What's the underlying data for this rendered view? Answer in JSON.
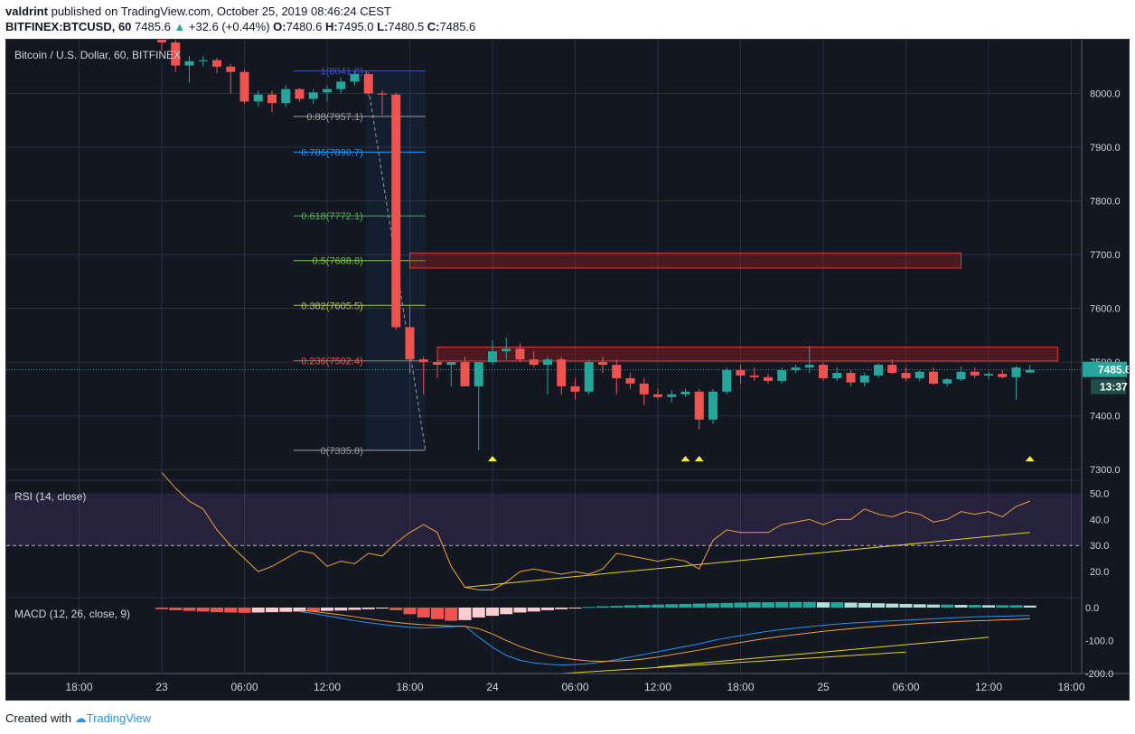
{
  "header": {
    "author": "valdrint",
    "published_text": "published on TradingView.com, October 25, 2019 08:46:24 CEST",
    "symbol": "BITFINEX:BTCUSD, 60",
    "last": "7485.6",
    "change": "+32.6 (+0.44%)",
    "open_label": "O:",
    "open": "7480.6",
    "high_label": "H:",
    "high": "7495.0",
    "low_label": "L:",
    "low": "7480.5",
    "close_label": "C:",
    "close": "7485.6"
  },
  "colors": {
    "background": "#131722",
    "grid": "#2a2e39",
    "text": "#b2b5be",
    "up": "#26a69a",
    "down": "#ef5350",
    "rsi_line": "#f0a030",
    "macd_line": "#2196f3",
    "signal_line": "#f0a030",
    "trend_line": "#e6d21e",
    "arrow": "#ffeb3b",
    "resistance": "#b71c1c"
  },
  "footer": {
    "created_with": "Created with",
    "brand": "TradingView"
  },
  "chart_data": {
    "type": "candlestick",
    "title": "Bitcoin / U.S. Dollar, 60, BITFINEX",
    "price_range": [
      7280,
      8100
    ],
    "price_ticks": [
      "8000.0",
      "7900.0",
      "7800.0",
      "7700.0",
      "7600.0",
      "7500.0",
      "7400.0",
      "7300.0"
    ],
    "last_price_label": "7485.6",
    "countdown_label": "13:37",
    "time_labels": [
      "18:00",
      "23",
      "06:00",
      "12:00",
      "18:00",
      "24",
      "06:00",
      "12:00",
      "18:00",
      "25",
      "06:00",
      "12:00",
      "18:00"
    ],
    "time_label_index": [
      -6,
      0,
      6,
      12,
      18,
      24,
      30,
      36,
      42,
      48,
      54,
      60,
      66
    ],
    "candle_index_start": 0,
    "candles": [
      [
        8120,
        8130,
        8080,
        8095
      ],
      [
        8095,
        8105,
        8040,
        8052
      ],
      [
        8052,
        8070,
        8020,
        8060
      ],
      [
        8060,
        8070,
        8050,
        8062
      ],
      [
        8062,
        8066,
        8038,
        8050
      ],
      [
        8050,
        8055,
        8000,
        8040
      ],
      [
        8040,
        8045,
        7980,
        7985
      ],
      [
        7985,
        8005,
        7975,
        7998
      ],
      [
        7998,
        8005,
        7965,
        7982
      ],
      [
        7982,
        8015,
        7975,
        8008
      ],
      [
        8008,
        8010,
        7985,
        7990
      ],
      [
        7990,
        8008,
        7980,
        8002
      ],
      [
        8002,
        8015,
        7985,
        8008
      ],
      [
        8008,
        8030,
        8000,
        8022
      ],
      [
        8022,
        8042,
        8015,
        8036
      ],
      [
        8036,
        8040,
        7995,
        8000
      ],
      [
        8000,
        8005,
        7960,
        7998
      ],
      [
        7998,
        8002,
        7560,
        7565
      ],
      [
        7565,
        7605,
        7480,
        7505
      ],
      [
        7505,
        7510,
        7440,
        7500
      ],
      [
        7500,
        7505,
        7470,
        7495
      ],
      [
        7495,
        7500,
        7455,
        7500
      ],
      [
        7500,
        7510,
        7455,
        7455
      ],
      [
        7455,
        7500,
        7336,
        7500
      ],
      [
        7500,
        7540,
        7495,
        7520
      ],
      [
        7520,
        7545,
        7505,
        7525
      ],
      [
        7525,
        7535,
        7500,
        7505
      ],
      [
        7505,
        7520,
        7490,
        7495
      ],
      [
        7495,
        7510,
        7440,
        7505
      ],
      [
        7505,
        7510,
        7440,
        7455
      ],
      [
        7455,
        7470,
        7430,
        7445
      ],
      [
        7445,
        7505,
        7440,
        7500
      ],
      [
        7500,
        7510,
        7480,
        7495
      ],
      [
        7495,
        7505,
        7440,
        7470
      ],
      [
        7470,
        7480,
        7450,
        7460
      ],
      [
        7460,
        7470,
        7420,
        7440
      ],
      [
        7440,
        7450,
        7430,
        7435
      ],
      [
        7435,
        7448,
        7425,
        7440
      ],
      [
        7440,
        7450,
        7435,
        7445
      ],
      [
        7445,
        7450,
        7375,
        7393
      ],
      [
        7393,
        7450,
        7385,
        7445
      ],
      [
        7445,
        7490,
        7440,
        7485
      ],
      [
        7485,
        7495,
        7460,
        7475
      ],
      [
        7475,
        7490,
        7465,
        7472
      ],
      [
        7472,
        7478,
        7460,
        7465
      ],
      [
        7465,
        7490,
        7460,
        7485
      ],
      [
        7485,
        7495,
        7480,
        7490
      ],
      [
        7490,
        7530,
        7480,
        7495
      ],
      [
        7495,
        7500,
        7465,
        7470
      ],
      [
        7470,
        7490,
        7465,
        7480
      ],
      [
        7480,
        7485,
        7455,
        7462
      ],
      [
        7462,
        7480,
        7455,
        7475
      ],
      [
        7475,
        7498,
        7470,
        7495
      ],
      [
        7495,
        7505,
        7478,
        7480
      ],
      [
        7480,
        7490,
        7465,
        7470
      ],
      [
        7470,
        7485,
        7465,
        7482
      ],
      [
        7482,
        7490,
        7458,
        7460
      ],
      [
        7460,
        7470,
        7455,
        7468
      ],
      [
        7468,
        7492,
        7465,
        7482
      ],
      [
        7482,
        7490,
        7470,
        7475
      ],
      [
        7475,
        7482,
        7468,
        7478
      ],
      [
        7478,
        7485,
        7470,
        7472
      ],
      [
        7472,
        7493,
        7430,
        7490
      ],
      [
        7480.6,
        7495,
        7480.5,
        7485.6
      ]
    ],
    "fibonacci": {
      "levels": [
        {
          "ratio": "1",
          "price": 8041.8,
          "label": "1(8041.8)",
          "color": "#3f51b5"
        },
        {
          "ratio": "0.88",
          "price": 7957.1,
          "label": "0.88(7957.1)",
          "color": "#9e9e9e"
        },
        {
          "ratio": "0.786",
          "price": 7890.7,
          "label": "0.786(7890.7)",
          "color": "#2196f3"
        },
        {
          "ratio": "0.618",
          "price": 7772.1,
          "label": "0.618(7772.1)",
          "color": "#4caf50"
        },
        {
          "ratio": "0.5",
          "price": 7688.8,
          "label": "0.5(7688.8)",
          "color": "#76c043"
        },
        {
          "ratio": "0.382",
          "price": 7605.5,
          "label": "0.382(7605.5)",
          "color": "#b5c93a"
        },
        {
          "ratio": "0.236",
          "price": 7502.4,
          "label": "0.236(7502.4)",
          "color": "#ef5350"
        },
        {
          "ratio": "0",
          "price": 7335.8,
          "label": "0(7335.8)",
          "color": "#9e9e9e"
        }
      ],
      "start_index": 15,
      "end_index": 19
    },
    "resistance_zones": [
      {
        "price_low": 7675,
        "price_high": 7703,
        "from_index": 18,
        "to_index": 58
      },
      {
        "price_low": 7502,
        "price_high": 7528,
        "from_index": 20,
        "to_index": 65
      }
    ],
    "arrows_at_index": [
      24,
      38,
      39,
      63
    ],
    "rsi": {
      "label": "RSI (14, close)",
      "range": [
        10,
        55
      ],
      "ticks": [
        "50.0",
        "40.0",
        "30.0",
        "20.0"
      ],
      "band": [
        30,
        50
      ],
      "values": [
        58,
        52,
        47,
        44,
        36,
        30,
        25,
        20,
        22,
        25,
        28,
        27,
        22,
        24,
        23,
        27,
        26,
        31,
        35,
        38,
        35,
        22,
        14,
        13,
        13,
        16,
        20,
        21,
        20,
        19,
        20,
        19,
        21,
        27,
        26,
        25,
        24,
        25,
        24,
        21,
        32,
        36,
        35,
        35,
        35,
        38,
        39,
        40,
        38,
        40,
        40,
        44,
        42,
        41,
        43,
        42,
        39,
        40,
        43,
        42,
        43,
        41,
        45,
        47
      ],
      "trend_line": {
        "from_index": 22,
        "from_value": 14,
        "to_index": 63,
        "to_value": 35
      }
    },
    "macd": {
      "label": "MACD (12, 26, close, 9)",
      "range": [
        -200,
        30
      ],
      "ticks": [
        "0.0",
        "-100.0",
        "-200.0"
      ],
      "histogram": [
        -5,
        -8,
        -10,
        -12,
        -14,
        -15,
        -16,
        -15,
        -14,
        -13,
        -12,
        -12,
        -10,
        -9,
        -7,
        -5,
        -3,
        -8,
        -20,
        -30,
        -35,
        -40,
        -38,
        -30,
        -25,
        -20,
        -15,
        -12,
        -8,
        -5,
        -2,
        2,
        4,
        5,
        7,
        8,
        9,
        10,
        11,
        12,
        13,
        14,
        15,
        16,
        16,
        17,
        17,
        17,
        16,
        16,
        15,
        14,
        13,
        12,
        11,
        10,
        9,
        9,
        8,
        8,
        7,
        7,
        7,
        6
      ],
      "macd_line": [
        -12,
        -18,
        -25,
        -32,
        -40,
        -46,
        -51,
        -56,
        -60,
        -62,
        -60,
        -58,
        -56,
        -90,
        -120,
        -145,
        -160,
        -168,
        -172,
        -174,
        -173,
        -170,
        -165,
        -158,
        -150,
        -142,
        -134,
        -126,
        -118,
        -110,
        -100,
        -92,
        -85,
        -78,
        -72,
        -67,
        -62,
        -58,
        -54,
        -50,
        -47,
        -45,
        -42,
        -40,
        -38,
        -36,
        -34,
        -32,
        -30,
        -28,
        -27,
        -26,
        -25,
        -24
      ],
      "macd_line_start": 10,
      "signal_line": [
        -8,
        -12,
        -17,
        -22,
        -28,
        -34,
        -40,
        -45,
        -49,
        -52,
        -54,
        -56,
        -57,
        -64,
        -80,
        -100,
        -118,
        -132,
        -143,
        -152,
        -158,
        -162,
        -163,
        -162,
        -160,
        -156,
        -150,
        -143,
        -136,
        -129,
        -121,
        -113,
        -106,
        -99,
        -93,
        -87,
        -82,
        -77,
        -72,
        -68,
        -64,
        -60,
        -57,
        -54,
        -51,
        -48,
        -46,
        -44,
        -42,
        -40,
        -39,
        -37,
        -36,
        -34
      ],
      "signal_line_start": 10,
      "trend_lines": [
        {
          "from_index": 29,
          "from_value": -200,
          "to_index": 54,
          "to_value": -135
        },
        {
          "from_index": 36,
          "from_value": -180,
          "to_index": 60,
          "to_value": -90
        }
      ]
    }
  }
}
